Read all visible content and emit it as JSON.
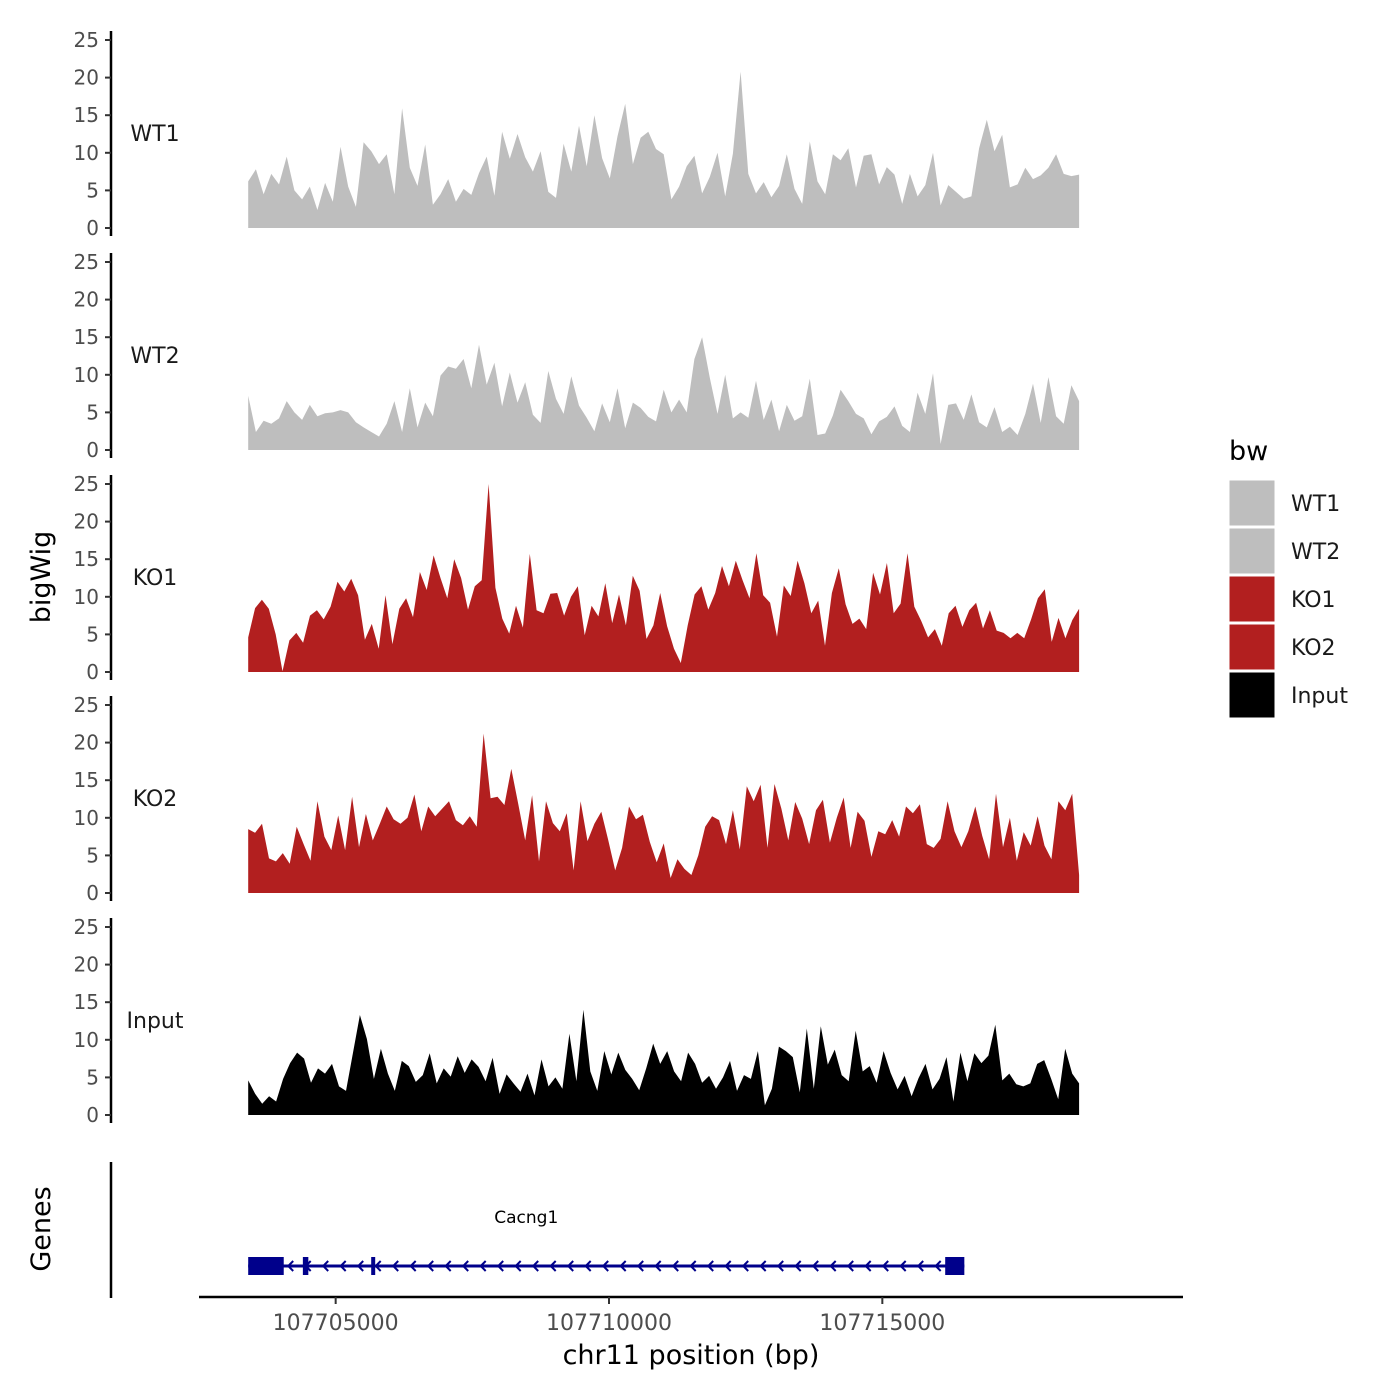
{
  "chart_data": {
    "type": "area",
    "ylabel": "bigWig",
    "xlabel": "chr11 position (bp)",
    "xlim": [
      107702500,
      107720500
    ],
    "data_range": [
      107703400,
      107718600
    ],
    "x_ticks": [
      107705000,
      107710000,
      107715000
    ],
    "x_tick_labels": [
      "107705000",
      "107710000",
      "107715000"
    ],
    "ylim": [
      0,
      25
    ],
    "y_ticks": [
      0,
      5,
      10,
      15,
      20,
      25
    ],
    "y_tick_labels": [
      "0",
      "5",
      "10",
      "15",
      "20",
      "25"
    ],
    "legend": {
      "title": "bw",
      "position": "right",
      "entries": [
        {
          "label": "WT1",
          "color": "#bebebe"
        },
        {
          "label": "WT2",
          "color": "#bebebe"
        },
        {
          "label": "KO1",
          "color": "#b21f1f"
        },
        {
          "label": "KO2",
          "color": "#b21f1f"
        },
        {
          "label": "Input",
          "color": "#000000"
        }
      ]
    },
    "series": [
      {
        "name": "WT1",
        "color": "#bebebe",
        "values": [
          6.2,
          7.8,
          4.5,
          7.2,
          5.8,
          9.5,
          5,
          3.8,
          5.5,
          2.4,
          6,
          3.5,
          10.8,
          5.5,
          2.8,
          11.4,
          10.2,
          8.5,
          9.8,
          4.5,
          15.9,
          8,
          5.6,
          11.1,
          3.1,
          4.5,
          6.5,
          3.5,
          5.2,
          4.4,
          7.3,
          9.5,
          4.3,
          12.8,
          9.2,
          12.5,
          9.4,
          7.5,
          10.2,
          4.8,
          4,
          11.2,
          7.5,
          13.6,
          8.2,
          15,
          9.3,
          6.6,
          12.2,
          16.5,
          8.5,
          12,
          12.8,
          10.5,
          9.8,
          3.8,
          5.5,
          8.2,
          9.6,
          4.6,
          6.8,
          10,
          4.2,
          9.9,
          20.8,
          7.2,
          4.6,
          6.1,
          4.1,
          5.6,
          9.8,
          5.2,
          3.2,
          11.5,
          6.2,
          4.5,
          9.8,
          9,
          10.6,
          5.4,
          9.6,
          9.8,
          5.8,
          8.1,
          7.1,
          3.2,
          7.2,
          4.2,
          5.7,
          10,
          3,
          5.7,
          4.8,
          3.9,
          4.2,
          10.6,
          14.4,
          10.2,
          12.4,
          5.4,
          5.8,
          8,
          6.5,
          7,
          8,
          9.8,
          7.2,
          6.9,
          7.1
        ]
      },
      {
        "name": "WT2",
        "color": "#bebebe",
        "values": [
          7.2,
          2.4,
          3.9,
          3.5,
          4.2,
          6.5,
          5,
          4,
          6,
          4.5,
          4.9,
          5,
          5.3,
          5,
          3.7,
          3,
          2.4,
          1.8,
          3.5,
          6.5,
          2.4,
          8.2,
          3,
          6.3,
          4.5,
          9.9,
          11.1,
          10.8,
          12.1,
          8.2,
          14,
          8.7,
          11.6,
          5.8,
          10.3,
          6.3,
          9,
          4.7,
          3.6,
          10.5,
          6.8,
          4.8,
          9.8,
          5.9,
          4.3,
          2.5,
          6.2,
          3.7,
          8.2,
          2.9,
          6.3,
          5.6,
          4.4,
          3.8,
          8,
          5,
          6.7,
          5,
          12.1,
          15,
          9.6,
          4.8,
          10,
          4.2,
          5,
          4.3,
          9.2,
          4,
          6.7,
          2.5,
          6,
          3.9,
          4.5,
          9.5,
          2,
          2.2,
          4.6,
          8,
          6.5,
          4.8,
          4.2,
          2.1,
          3.8,
          4.4,
          5.8,
          3.2,
          2.4,
          7.6,
          4.8,
          10.2,
          0.8,
          6,
          6.2,
          4,
          7.4,
          3.7,
          3,
          5.7,
          2.4,
          3.1,
          2,
          4.8,
          8.8,
          3.6,
          9.7,
          4.5,
          3.5,
          8.6,
          6.5
        ]
      },
      {
        "name": "KO1",
        "color": "#b21f1f",
        "values": [
          4.6,
          8.5,
          9.6,
          8.4,
          5,
          0.1,
          4.2,
          5.2,
          3.9,
          7.5,
          8.2,
          7,
          8.7,
          12,
          10.7,
          12.4,
          10.2,
          4.3,
          6.4,
          3.1,
          10.2,
          3.7,
          8.4,
          9.8,
          7.3,
          13.3,
          10.9,
          15.5,
          12.5,
          9.8,
          15,
          12.5,
          8.3,
          11.4,
          12.2,
          25,
          11.2,
          7.1,
          5.1,
          8.8,
          5.9,
          15.7,
          8.2,
          7.8,
          10.4,
          10.5,
          7.5,
          10,
          11.4,
          4.9,
          8.8,
          7.4,
          11.8,
          6.5,
          10.3,
          6.2,
          12.8,
          10.8,
          4.4,
          6.2,
          10.5,
          6.1,
          3.1,
          1.2,
          6.2,
          10.3,
          11.4,
          8.3,
          10.5,
          14.1,
          11.4,
          14.8,
          12.2,
          9.8,
          15.8,
          10.2,
          9.2,
          4.7,
          11.5,
          10.1,
          14.8,
          11.8,
          7.8,
          9.5,
          3.5,
          10.5,
          13.8,
          9,
          6.4,
          7.1,
          5.7,
          13.2,
          10.3,
          14.5,
          7.8,
          9.1,
          15.8,
          8.7,
          6.8,
          4.6,
          5.7,
          3.5,
          7.8,
          8.8,
          6,
          8.2,
          9.2,
          5.8,
          8.2,
          5.5,
          5.2,
          4.5,
          5.2,
          4.5,
          7,
          9.8,
          11,
          4,
          7.2,
          4.5,
          6.9,
          8.4
        ]
      },
      {
        "name": "KO2",
        "color": "#b21f1f",
        "values": [
          8.5,
          8,
          9.2,
          4.6,
          4.2,
          5.3,
          3.9,
          8.8,
          6.5,
          4.3,
          12.2,
          7.5,
          5.7,
          10.3,
          5.7,
          12.8,
          6.1,
          10.5,
          7,
          9.2,
          11.5,
          9.8,
          9.2,
          10,
          13.1,
          8.2,
          11.5,
          10.2,
          11.2,
          12.2,
          9.7,
          9,
          10.2,
          8.8,
          21.2,
          12.6,
          12.8,
          11.7,
          16.5,
          11.8,
          7,
          13,
          4.2,
          12.2,
          9.3,
          8.2,
          10.6,
          3,
          12.2,
          6.9,
          9.2,
          10.8,
          7,
          3,
          6,
          11.5,
          9.8,
          10.4,
          6.8,
          4.1,
          6.6,
          2,
          4.5,
          3.2,
          2.4,
          5,
          8.8,
          10.2,
          9.7,
          6.5,
          11,
          5.8,
          14.2,
          12.2,
          14.4,
          6,
          14.5,
          11.2,
          7,
          12.1,
          9.9,
          6.5,
          11,
          12.4,
          6.7,
          10,
          12.7,
          6,
          10.8,
          9.6,
          4.8,
          8.2,
          7.8,
          9.7,
          7.5,
          11.5,
          10.6,
          11.8,
          6.5,
          6,
          7.2,
          12.2,
          8.2,
          6.1,
          8.2,
          11.5,
          7.6,
          4.5,
          13.2,
          6.1,
          10,
          4.3,
          8.1,
          6.3,
          10.2,
          6.3,
          4.5,
          12.2,
          11,
          13.2,
          2.4
        ]
      },
      {
        "name": "Input",
        "color": "#000000",
        "values": [
          4.6,
          2.8,
          1.5,
          2.5,
          1.8,
          4.8,
          6.9,
          8.3,
          7.5,
          4.3,
          6.2,
          5.5,
          6.8,
          3.8,
          3.2,
          8.2,
          13.3,
          10.1,
          4.8,
          8.8,
          5.5,
          3.2,
          7.2,
          6.5,
          4.4,
          5.3,
          8.2,
          4.2,
          6.2,
          5.1,
          7.8,
          5.6,
          7.4,
          6.4,
          4.5,
          7.6,
          2.8,
          5.4,
          4.2,
          3.1,
          5.5,
          2.6,
          7.4,
          3.8,
          5,
          3.5,
          10.8,
          4.5,
          14,
          5.8,
          3.2,
          8.5,
          5.4,
          8.3,
          6,
          4.8,
          3.3,
          6.2,
          9.5,
          6.8,
          8.5,
          5.8,
          4.5,
          8.3,
          6.8,
          4.3,
          5.2,
          3.5,
          5,
          7.2,
          3.2,
          5.3,
          4.8,
          8.5,
          1.3,
          3.5,
          9.1,
          8.5,
          7.7,
          3,
          11.5,
          3.5,
          11.8,
          6.7,
          8.7,
          5.3,
          4.5,
          11.2,
          5.8,
          6.5,
          4.3,
          8.5,
          5.6,
          3.4,
          5.2,
          2.5,
          4.9,
          6.8,
          3.4,
          4.8,
          7.7,
          1.8,
          8.3,
          4.5,
          8.2,
          6.9,
          7.9,
          12,
          4.6,
          5.5,
          4.1,
          3.8,
          4.2,
          6.8,
          7.3,
          4.8,
          2.1,
          8.8,
          5.5,
          4.2
        ]
      }
    ],
    "gene_track": {
      "ylabel": "Genes",
      "genes": [
        {
          "name": "Cacng1",
          "start": 107703400,
          "end": 107716500,
          "strand": "-",
          "exons": [
            [
              107703400,
              107704050
            ],
            [
              107704400,
              107704500
            ],
            [
              107705650,
              107705720
            ],
            [
              107716150,
              107716500
            ]
          ]
        }
      ]
    }
  }
}
